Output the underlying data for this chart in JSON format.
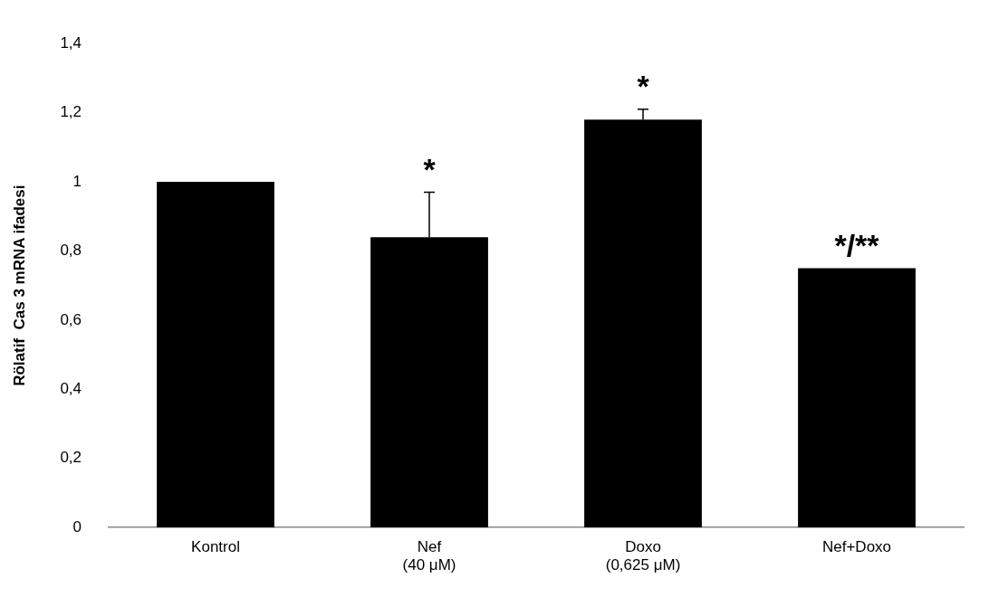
{
  "chart_data": {
    "type": "bar",
    "ylabel": "Rölatif  Cas 3 mRNA ifadesi",
    "categories": [
      "Kontrol",
      "Nef\n(40 μM)",
      "Doxo\n(0,625 μM)",
      "Nef+Doxo"
    ],
    "values": [
      1.0,
      0.84,
      1.18,
      0.75
    ],
    "errors": [
      null,
      [
        0.84,
        0.97
      ],
      [
        1.18,
        1.21
      ],
      null
    ],
    "color": "#000000",
    "ylim": [
      0,
      1.4
    ],
    "yticks": [
      0,
      {
        "value": 0.2,
        "label": "0,2"
      },
      {
        "value": 0.4,
        "label": "0,4"
      },
      {
        "value": 0.6,
        "label": "0,6"
      },
      {
        "value": 0.8,
        "label": "0,8"
      },
      1,
      {
        "value": 1.2,
        "label": "1,2"
      },
      {
        "value": 1.4,
        "label": "1,4"
      }
    ],
    "grid": false,
    "legend": false,
    "annotations": [
      {
        "text": "*",
        "x": "Nef\n(40 μM)",
        "y": 0.97
      },
      {
        "text": "*",
        "x": "Doxo\n(0,625 μM)",
        "y": 1.21
      },
      {
        "text": "*/**",
        "x": "Nef+Doxo",
        "y": 0.75
      }
    ]
  }
}
